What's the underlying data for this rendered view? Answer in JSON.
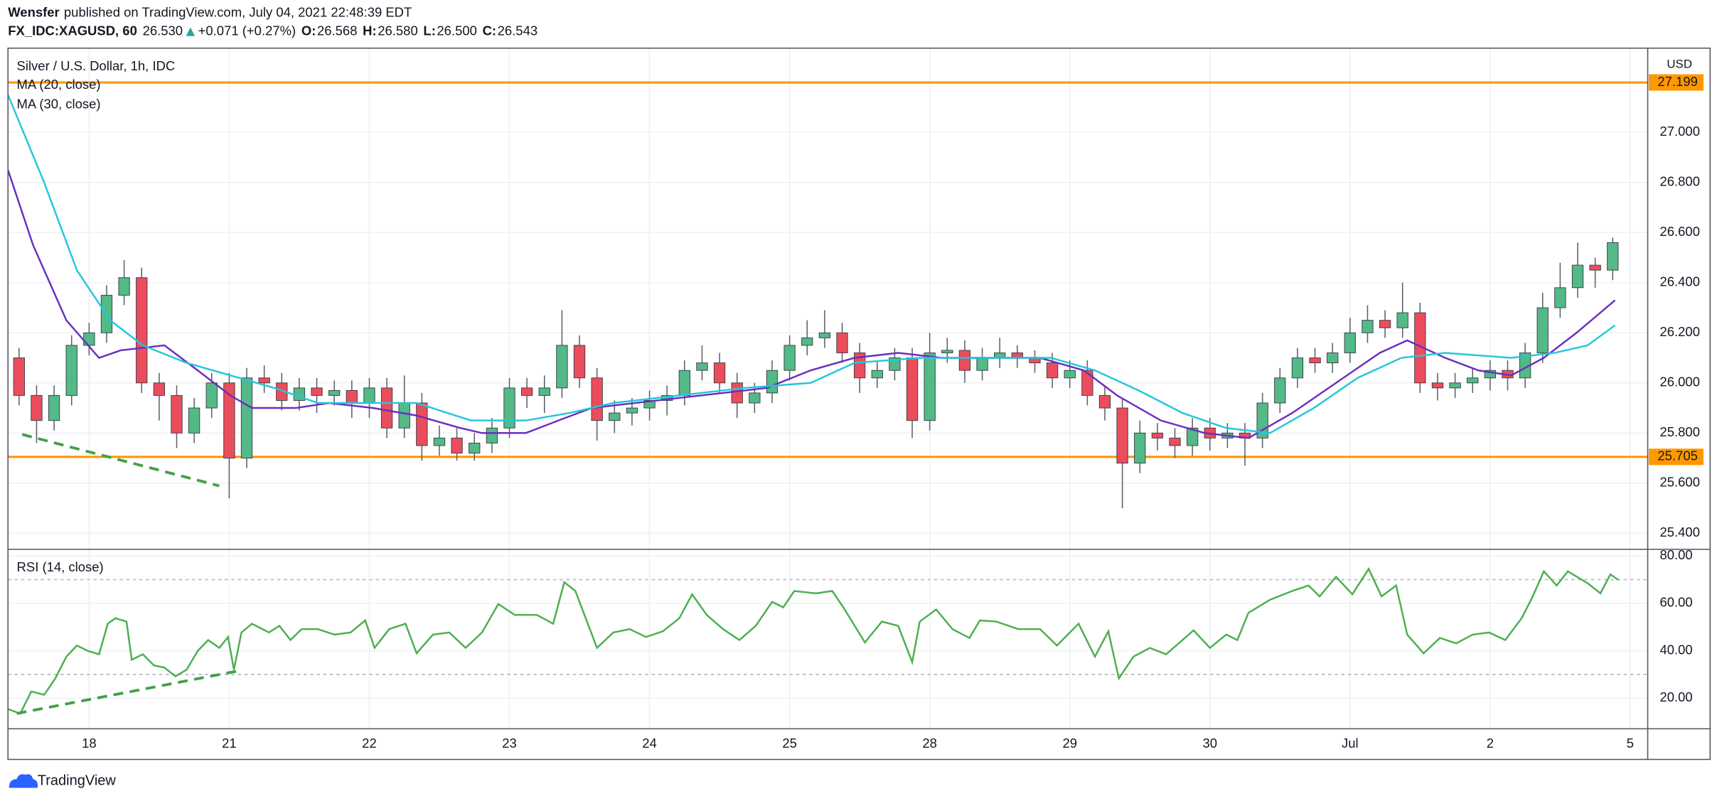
{
  "header": {
    "author": "Wensfer",
    "published": "published on TradingView.com, July 04, 2021 22:48:39 EDT",
    "symbol": "FX_IDC:XAGUSD, 60",
    "last": "26.530",
    "change": "+0.071 (+0.27%)",
    "ohlc": [
      [
        "O:",
        "26.568"
      ],
      [
        "H:",
        "26.580"
      ],
      [
        "L:",
        "26.500"
      ],
      [
        "C:",
        "26.543"
      ]
    ]
  },
  "footer": {
    "brand": "TradingView"
  },
  "chart_data": [
    {
      "type": "candlestick",
      "title": "Silver / U.S. Dollar, 1h, IDC",
      "currency": "USD",
      "up_color": "#53b987",
      "down_color": "#eb4d5c",
      "grid": true,
      "x": [
        -12,
        -9,
        -6,
        -3,
        0,
        3,
        6,
        9,
        12,
        15,
        18,
        21,
        24,
        27,
        30,
        33,
        36,
        39,
        42,
        45,
        48,
        51,
        54,
        57,
        60,
        63,
        66,
        69,
        72,
        75,
        78,
        81,
        84,
        87,
        90,
        93,
        96,
        99,
        102,
        105,
        108,
        111,
        114,
        117,
        120,
        123,
        126,
        129,
        132,
        135,
        138,
        141,
        144,
        147,
        150,
        153,
        156,
        159,
        162,
        165,
        168,
        171,
        174,
        177,
        180,
        183,
        186,
        189,
        192,
        195,
        198,
        201,
        204,
        207,
        210,
        213,
        216,
        219,
        222,
        225,
        228,
        231,
        234,
        237,
        240,
        243,
        246,
        249,
        252,
        255,
        258,
        261
      ],
      "open": [
        26.1,
        25.95,
        25.85,
        25.95,
        26.15,
        26.2,
        26.35,
        26.42,
        26.0,
        25.95,
        25.8,
        25.9,
        26.0,
        25.7,
        26.02,
        26.0,
        25.93,
        25.98,
        25.95,
        25.97,
        25.92,
        25.98,
        25.82,
        25.92,
        25.75,
        25.78,
        25.72,
        25.76,
        25.82,
        25.98,
        25.95,
        25.98,
        26.15,
        26.02,
        25.85,
        25.88,
        25.9,
        25.93,
        25.95,
        26.05,
        26.08,
        26.0,
        25.92,
        25.96,
        26.05,
        26.15,
        26.18,
        26.2,
        26.12,
        26.02,
        26.05,
        26.1,
        25.85,
        26.12,
        26.13,
        26.05,
        26.1,
        26.12,
        26.1,
        26.08,
        26.02,
        26.05,
        25.95,
        25.9,
        25.68,
        25.8,
        25.78,
        25.75,
        25.82,
        25.78,
        25.8,
        25.78,
        25.92,
        26.02,
        26.1,
        26.08,
        26.12,
        26.2,
        26.25,
        26.22,
        26.28,
        26.0,
        25.98,
        26.0,
        26.02,
        26.05,
        26.02,
        26.12,
        26.3,
        26.38,
        26.47,
        26.45
      ],
      "high": [
        26.14,
        25.99,
        25.99,
        26.19,
        26.24,
        26.39,
        26.49,
        26.46,
        26.04,
        25.99,
        25.94,
        26.04,
        26.04,
        26.06,
        26.07,
        26.04,
        26.02,
        26.02,
        26.01,
        26.01,
        26.02,
        26.02,
        26.03,
        25.96,
        25.83,
        25.82,
        25.8,
        25.86,
        26.02,
        26.02,
        26.03,
        26.29,
        26.19,
        26.06,
        25.93,
        25.94,
        25.97,
        25.99,
        26.09,
        26.15,
        26.12,
        26.04,
        26.0,
        26.09,
        26.19,
        26.25,
        26.29,
        26.24,
        26.16,
        26.09,
        26.14,
        26.14,
        26.2,
        26.18,
        26.17,
        26.14,
        26.18,
        26.15,
        26.13,
        26.12,
        26.09,
        26.09,
        25.99,
        25.94,
        25.85,
        25.84,
        25.82,
        25.86,
        25.86,
        25.84,
        25.84,
        25.96,
        26.06,
        26.14,
        26.14,
        26.16,
        26.26,
        26.31,
        26.29,
        26.4,
        26.32,
        26.04,
        26.04,
        26.06,
        26.09,
        26.09,
        26.16,
        26.36,
        26.48,
        26.56,
        26.5,
        26.58
      ],
      "low": [
        25.91,
        25.76,
        25.81,
        25.91,
        26.11,
        26.16,
        26.31,
        25.96,
        25.85,
        25.74,
        25.76,
        25.86,
        25.54,
        25.66,
        25.96,
        25.89,
        25.89,
        25.88,
        25.91,
        25.86,
        25.86,
        25.78,
        25.78,
        25.69,
        25.71,
        25.69,
        25.69,
        25.72,
        25.78,
        25.9,
        25.88,
        25.94,
        25.98,
        25.77,
        25.8,
        25.83,
        25.85,
        25.87,
        25.91,
        26.01,
        25.96,
        25.86,
        25.88,
        25.92,
        26.01,
        26.11,
        26.14,
        26.08,
        25.96,
        25.98,
        26.01,
        25.78,
        25.81,
        26.08,
        26.0,
        26.01,
        26.06,
        26.06,
        26.04,
        25.98,
        25.98,
        25.91,
        25.85,
        25.5,
        25.64,
        25.73,
        25.7,
        25.71,
        25.73,
        25.74,
        25.67,
        25.74,
        25.88,
        25.98,
        26.04,
        26.04,
        26.08,
        26.16,
        26.18,
        26.18,
        25.96,
        25.93,
        25.94,
        25.96,
        25.97,
        25.97,
        25.98,
        26.08,
        26.26,
        26.34,
        26.38,
        26.41
      ],
      "close": [
        25.95,
        25.85,
        25.95,
        26.15,
        26.2,
        26.35,
        26.42,
        26.0,
        25.95,
        25.8,
        25.9,
        26.0,
        25.7,
        26.02,
        26.0,
        25.93,
        25.98,
        25.95,
        25.97,
        25.92,
        25.98,
        25.82,
        25.92,
        25.75,
        25.78,
        25.72,
        25.76,
        25.82,
        25.98,
        25.95,
        25.98,
        26.15,
        26.02,
        25.85,
        25.88,
        25.9,
        25.93,
        25.95,
        26.05,
        26.08,
        26.0,
        25.92,
        25.96,
        26.05,
        26.15,
        26.18,
        26.2,
        26.12,
        26.02,
        26.05,
        26.1,
        25.85,
        26.12,
        26.13,
        26.05,
        26.1,
        26.12,
        26.1,
        26.08,
        26.02,
        26.05,
        25.95,
        25.9,
        25.68,
        25.8,
        25.78,
        25.75,
        25.82,
        25.78,
        25.8,
        25.78,
        25.92,
        26.02,
        26.1,
        26.08,
        26.12,
        26.2,
        26.25,
        26.22,
        26.28,
        26.0,
        25.98,
        26.0,
        26.02,
        26.05,
        26.02,
        26.12,
        26.3,
        26.38,
        26.47,
        26.45,
        26.56
      ],
      "series": [
        {
          "name": "MA (20, close)",
          "color": "#6a2fbf",
          "x": [
            -13.9,
            -9.6,
            -3.9,
            1.7,
            5.4,
            12.9,
            18.6,
            24.2,
            27.9,
            35.4,
            41.1,
            48.6,
            56.1,
            63.6,
            67.3,
            74.8,
            80.4,
            86.1,
            97.3,
            104.8,
            116.1,
            123.6,
            131.1,
            138.6,
            146.1,
            153.6,
            162.9,
            170.4,
            176.1,
            183.6,
            191.1,
            198.6,
            206.1,
            213.6,
            221.1,
            225.8,
            232.3,
            238.0,
            243.6,
            249.2,
            254.8,
            261.4
          ],
          "values": [
            26.85,
            26.55,
            26.25,
            26.1,
            26.13,
            26.15,
            26.05,
            25.95,
            25.9,
            25.9,
            25.92,
            25.9,
            25.87,
            25.82,
            25.8,
            25.8,
            25.85,
            25.9,
            25.93,
            25.95,
            25.98,
            26.05,
            26.1,
            26.12,
            26.1,
            26.1,
            26.1,
            26.05,
            25.95,
            25.85,
            25.8,
            25.78,
            25.88,
            26.0,
            26.12,
            26.17,
            26.1,
            26.05,
            26.03,
            26.1,
            26.2,
            26.33
          ]
        },
        {
          "name": "MA (30, close)",
          "color": "#26c6da",
          "x": [
            -13.9,
            -7.7,
            -2.1,
            3.6,
            9.2,
            16.7,
            24.2,
            31.7,
            39.2,
            46.7,
            56.1,
            65.4,
            74.8,
            82.3,
            89.8,
            101.1,
            112.3,
            123.6,
            131.1,
            142.3,
            153.6,
            164.8,
            172.3,
            179.8,
            187.3,
            194.8,
            202.3,
            209.8,
            217.3,
            224.8,
            232.3,
            243.6,
            251.1,
            256.7,
            261.4
          ],
          "values": [
            27.15,
            26.8,
            26.45,
            26.25,
            26.15,
            26.08,
            26.03,
            25.98,
            25.92,
            25.92,
            25.92,
            25.85,
            25.85,
            25.88,
            25.92,
            25.95,
            25.98,
            26.0,
            26.08,
            26.1,
            26.1,
            26.1,
            26.05,
            25.97,
            25.88,
            25.82,
            25.8,
            25.9,
            26.02,
            26.1,
            26.12,
            26.1,
            26.12,
            26.15,
            26.23
          ]
        }
      ],
      "hlines": [
        27.199,
        25.705
      ],
      "hline_color": "#ff9800",
      "xlim": [
        -13.9,
        267
      ],
      "ylim": [
        25.336,
        27.336
      ],
      "yticks": [
        {
          "value": 25.4,
          "label": "25.400"
        },
        {
          "value": 25.6,
          "label": "25.600"
        },
        {
          "value": 25.8,
          "label": "25.800"
        },
        {
          "value": 26,
          "label": "26.000"
        },
        {
          "value": 26.2,
          "label": "26.200"
        },
        {
          "value": 26.4,
          "label": "26.400"
        },
        {
          "value": 26.6,
          "label": "26.600"
        },
        {
          "value": 26.8,
          "label": "26.800"
        },
        {
          "value": 27,
          "label": "27.000"
        }
      ],
      "xticks": [
        {
          "value": 0,
          "label": "18"
        },
        {
          "value": 24,
          "label": "21"
        },
        {
          "value": 48,
          "label": "22"
        },
        {
          "value": 72,
          "label": "23"
        },
        {
          "value": 96,
          "label": "24"
        },
        {
          "value": 120,
          "label": "25"
        },
        {
          "value": 144,
          "label": "28"
        },
        {
          "value": 168,
          "label": "29"
        },
        {
          "value": 192,
          "label": "30"
        },
        {
          "value": 216,
          "label": "Jul"
        },
        {
          "value": 240,
          "label": "2"
        },
        {
          "value": 264,
          "label": "5"
        }
      ]
    },
    {
      "type": "line",
      "title": "RSI (14, close)",
      "color": "#4caf50",
      "levels": [
        70,
        30
      ],
      "x": [
        -13.9,
        -11.8,
        -9.9,
        -7.7,
        -5.8,
        -3.9,
        -2.1,
        -0.2,
        1.7,
        3.2,
        4.5,
        6.4,
        7.3,
        9.2,
        11.1,
        12.9,
        14.8,
        16.7,
        18.6,
        20.4,
        22.3,
        23.8,
        24.8,
        26.1,
        27.9,
        30.8,
        32.6,
        34.5,
        36.4,
        39.2,
        42,
        44.8,
        47.3,
        48.9,
        51.4,
        54.2,
        56.1,
        58.9,
        61.7,
        64.5,
        67.3,
        70.1,
        72.9,
        76.7,
        79.5,
        81.4,
        83.3,
        87,
        89.8,
        92.6,
        95.4,
        98.3,
        101.1,
        103.3,
        105.8,
        108.6,
        111.4,
        114.2,
        117,
        118.9,
        120.8,
        124.5,
        127.3,
        129.2,
        132.9,
        135.8,
        138.6,
        141,
        142.3,
        145.1,
        147.9,
        150.8,
        152.6,
        155.4,
        159.2,
        162.9,
        165.8,
        169.5,
        172.3,
        174.6,
        176.4,
        178.9,
        181.7,
        184.5,
        187.3,
        189.2,
        192,
        194.8,
        196.7,
        198.6,
        202.3,
        206.1,
        208.9,
        210.8,
        213.6,
        216.4,
        219.2,
        221.4,
        223.9,
        225.8,
        228.6,
        231.4,
        234.2,
        237,
        239.8,
        242.6,
        245.4,
        247.3,
        249.2,
        251.4,
        253.3,
        256.7,
        258.9,
        260.6,
        262
      ],
      "values": [
        15.4,
        13.5,
        22.8,
        21.4,
        28.3,
        37.5,
        42.2,
        39.9,
        38.5,
        51.4,
        53.7,
        52.3,
        36.2,
        38.5,
        33.8,
        32.9,
        29.2,
        32,
        39.9,
        44.5,
        41.2,
        45.8,
        32,
        47.7,
        51.4,
        47.7,
        50.5,
        44.5,
        49.1,
        49.1,
        46.8,
        47.7,
        52.8,
        41.2,
        49.1,
        51.4,
        38.9,
        46.8,
        47.7,
        41.2,
        47.7,
        59.7,
        55.1,
        55.1,
        51.4,
        68.9,
        65.2,
        41.2,
        47.7,
        49.1,
        45.8,
        48.2,
        53.7,
        63.8,
        55.1,
        49.1,
        44.5,
        50.5,
        60.6,
        58.3,
        65.2,
        64.2,
        65.2,
        58.3,
        43.5,
        52.3,
        50.5,
        35.2,
        52.3,
        57.4,
        49.1,
        45.4,
        52.8,
        52.3,
        49.1,
        49.1,
        42.2,
        51.4,
        37.5,
        48.2,
        28.3,
        37.5,
        41.2,
        38.5,
        44.5,
        48.6,
        41.2,
        46.8,
        44.5,
        56,
        61.5,
        65.2,
        67.5,
        62.9,
        71.2,
        63.8,
        74.5,
        62.9,
        67.5,
        46.8,
        38.9,
        45.4,
        43.1,
        46.8,
        47.7,
        44.5,
        53.7,
        62.9,
        73.5,
        67.5,
        73.5,
        68.5,
        64.2,
        72.2,
        69.8
      ],
      "xlim": [
        -13.9,
        267
      ],
      "ylim": [
        7.08,
        82.77
      ],
      "yticks": [
        {
          "value": 20,
          "label": "20.00"
        },
        {
          "value": 40,
          "label": "40.00"
        },
        {
          "value": 60,
          "label": "60.00"
        },
        {
          "value": 80,
          "label": "80.00"
        }
      ]
    }
  ]
}
